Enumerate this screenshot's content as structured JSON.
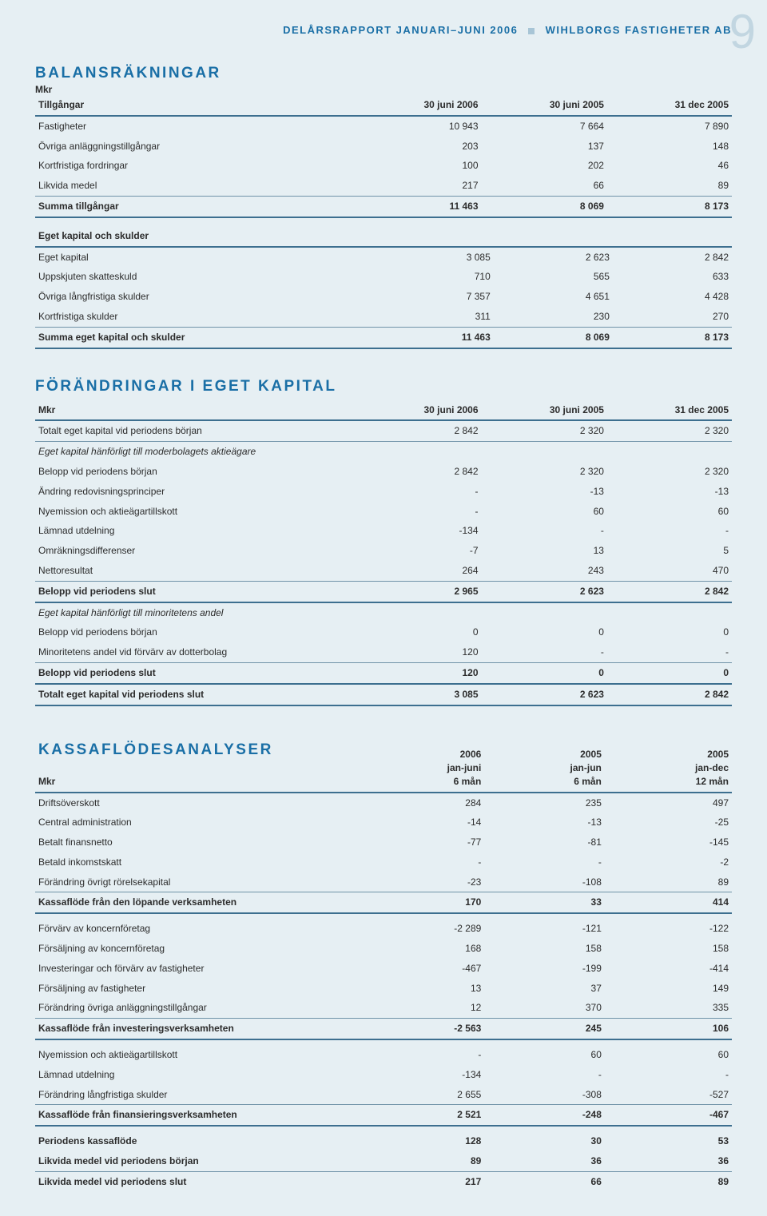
{
  "header": {
    "left": "DELÅRSRAPPORT JANUARI–JUNI 2006",
    "right": "WIHLBORGS FASTIGHETER AB",
    "page": "9"
  },
  "colors": {
    "accent": "#1a6fa6",
    "rule": "#3d6f8f",
    "bg": "#e6eff3"
  },
  "balance": {
    "title": "BALANSRÄKNINGAR",
    "unit": "Mkr",
    "subheader": "Tillgångar",
    "cols": [
      "30 juni 2006",
      "30 juni 2005",
      "31 dec 2005"
    ],
    "rows": [
      {
        "l": "Fastigheter",
        "v": [
          "10 943",
          "7 664",
          "7 890"
        ]
      },
      {
        "l": "Övriga anläggningstillgångar",
        "v": [
          "203",
          "137",
          "148"
        ]
      },
      {
        "l": "Kortfristiga fordringar",
        "v": [
          "100",
          "202",
          "46"
        ]
      },
      {
        "l": "Likvida medel",
        "v": [
          "217",
          "66",
          "89"
        ],
        "bottom": true
      },
      {
        "l": "Summa tillgångar",
        "v": [
          "11 463",
          "8 069",
          "8 173"
        ],
        "bold": true,
        "thick": true
      }
    ],
    "sub2": "Eget kapital och skulder",
    "rows2": [
      {
        "l": "Eget kapital",
        "v": [
          "3 085",
          "2 623",
          "2 842"
        ]
      },
      {
        "l": "Uppskjuten skatteskuld",
        "v": [
          "710",
          "565",
          "633"
        ]
      },
      {
        "l": "Övriga långfristiga skulder",
        "v": [
          "7 357",
          "4 651",
          "4 428"
        ]
      },
      {
        "l": "Kortfristiga skulder",
        "v": [
          "311",
          "230",
          "270"
        ],
        "bottom": true
      },
      {
        "l": "Summa eget kapital och skulder",
        "v": [
          "11 463",
          "8 069",
          "8 173"
        ],
        "bold": true,
        "thick": true
      }
    ]
  },
  "equity": {
    "title": "FÖRÄNDRINGAR I EGET KAPITAL",
    "unit": "Mkr",
    "cols": [
      "30 juni 2006",
      "30 juni 2005",
      "31 dec 2005"
    ],
    "rows": [
      {
        "l": "Totalt eget kapital vid periodens början",
        "v": [
          "2 842",
          "2 320",
          "2 320"
        ],
        "bottom": true
      },
      {
        "l": "Eget kapital hänförligt till moderbolagets aktieägare",
        "ital": true,
        "nodata": true
      },
      {
        "l": "Belopp vid periodens början",
        "v": [
          "2 842",
          "2 320",
          "2 320"
        ]
      },
      {
        "l": "Ändring redovisningsprinciper",
        "v": [
          "-",
          "-13",
          "-13"
        ]
      },
      {
        "l": "Nyemission och aktieägartillskott",
        "v": [
          "-",
          "60",
          "60"
        ]
      },
      {
        "l": "Lämnad utdelning",
        "v": [
          "-134",
          "-",
          "-"
        ]
      },
      {
        "l": "Omräkningsdifferenser",
        "v": [
          "-7",
          "13",
          "5"
        ]
      },
      {
        "l": "Nettoresultat",
        "v": [
          "264",
          "243",
          "470"
        ],
        "bottom": true
      },
      {
        "l": "Belopp vid periodens slut",
        "v": [
          "2 965",
          "2 623",
          "2 842"
        ],
        "bold": true,
        "thick": true
      },
      {
        "l": "Eget kapital hänförligt till minoritetens andel",
        "ital": true,
        "nodata": true
      },
      {
        "l": "Belopp vid periodens början",
        "v": [
          "0",
          "0",
          "0"
        ]
      },
      {
        "l": "Minoritetens andel vid förvärv av dotterbolag",
        "v": [
          "120",
          "-",
          "-"
        ],
        "bottom": true
      },
      {
        "l": "Belopp vid periodens slut",
        "v": [
          "120",
          "0",
          "0"
        ],
        "bold": true,
        "thick": true
      },
      {
        "l": "Totalt eget kapital vid periodens slut",
        "v": [
          "3 085",
          "2 623",
          "2 842"
        ],
        "bold": true,
        "thick": true
      }
    ]
  },
  "cashflow": {
    "title": "KASSAFLÖDESANALYSER",
    "unit": "Mkr",
    "cols": [
      "2006\njan-juni\n6 mån",
      "2005\njan-jun\n6 mån",
      "2005\njan-dec\n12 mån"
    ],
    "rows": [
      {
        "l": "Driftsöverskott",
        "v": [
          "284",
          "235",
          "497"
        ]
      },
      {
        "l": "Central administration",
        "v": [
          "-14",
          "-13",
          "-25"
        ]
      },
      {
        "l": "Betalt finansnetto",
        "v": [
          "-77",
          "-81",
          "-145"
        ]
      },
      {
        "l": "Betald inkomstskatt",
        "v": [
          "-",
          "-",
          "-2"
        ]
      },
      {
        "l": "Förändring övrigt rörelsekapital",
        "v": [
          "-23",
          "-108",
          "89"
        ],
        "bottom": true
      },
      {
        "l": "Kassaflöde från den löpande verksamheten",
        "v": [
          "170",
          "33",
          "414"
        ],
        "bold": true,
        "thick": true
      },
      {
        "l": "Förvärv av koncernföretag",
        "v": [
          "-2 289",
          "-121",
          "-122"
        ],
        "gap": true
      },
      {
        "l": "Försäljning av koncernföretag",
        "v": [
          "168",
          "158",
          "158"
        ]
      },
      {
        "l": "Investeringar och förvärv av fastigheter",
        "v": [
          "-467",
          "-199",
          "-414"
        ]
      },
      {
        "l": "Försäljning av fastigheter",
        "v": [
          "13",
          "37",
          "149"
        ]
      },
      {
        "l": "Förändring övriga anläggningstillgångar",
        "v": [
          "12",
          "370",
          "335"
        ],
        "bottom": true
      },
      {
        "l": "Kassaflöde från investeringsverksamheten",
        "v": [
          "-2 563",
          "245",
          "106"
        ],
        "bold": true,
        "thick": true
      },
      {
        "l": "Nyemission och aktieägartillskott",
        "v": [
          "-",
          "60",
          "60"
        ],
        "gap": true
      },
      {
        "l": "Lämnad utdelning",
        "v": [
          "-134",
          "-",
          "-"
        ]
      },
      {
        "l": "Förändring långfristiga skulder",
        "v": [
          "2 655",
          "-308",
          "-527"
        ],
        "bottom": true
      },
      {
        "l": "Kassaflöde från finansieringsverksamheten",
        "v": [
          "2 521",
          "-248",
          "-467"
        ],
        "bold": true,
        "thick": true
      },
      {
        "l": "Periodens kassaflöde",
        "v": [
          "128",
          "30",
          "53"
        ],
        "bold": true,
        "gap": true
      },
      {
        "l": "Likvida medel vid periodens början",
        "v": [
          "89",
          "36",
          "36"
        ],
        "bold": true,
        "bottom": true
      },
      {
        "l": "Likvida medel vid periodens slut",
        "v": [
          "217",
          "66",
          "89"
        ],
        "bold": true
      }
    ]
  }
}
